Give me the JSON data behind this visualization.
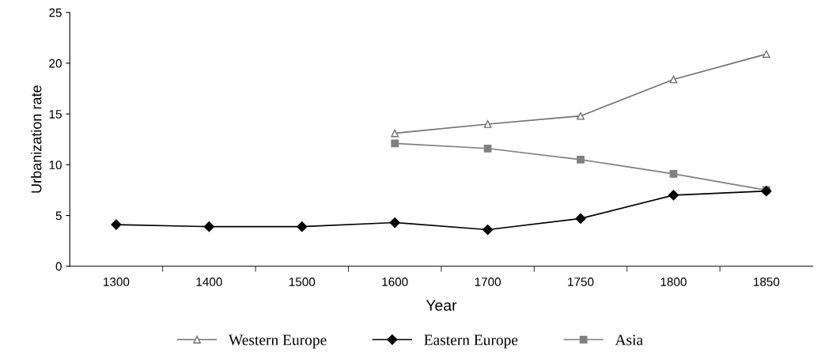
{
  "chart_data": {
    "type": "line",
    "xlabel": "Year",
    "ylabel": "Urbanization rate",
    "categories": [
      "1300",
      "1400",
      "1500",
      "1600",
      "1700",
      "1750",
      "1800",
      "1850"
    ],
    "ylim": [
      0,
      25
    ],
    "yticks": [
      0,
      5,
      10,
      15,
      20,
      25
    ],
    "grid": false,
    "legend": "bottom",
    "series": [
      {
        "name": "Western Europe",
        "color": "#707070",
        "marker": "triangle",
        "values": [
          null,
          null,
          null,
          13.1,
          14.0,
          14.8,
          18.4,
          20.9
        ]
      },
      {
        "name": "Eastern Europe",
        "color": "#000000",
        "marker": "diamond",
        "values": [
          4.1,
          3.9,
          3.9,
          4.3,
          3.6,
          4.7,
          7.0,
          7.4
        ]
      },
      {
        "name": "Asia",
        "color": "#808080",
        "marker": "square",
        "values": [
          null,
          null,
          null,
          12.1,
          11.6,
          10.5,
          9.1,
          7.5
        ]
      }
    ]
  }
}
